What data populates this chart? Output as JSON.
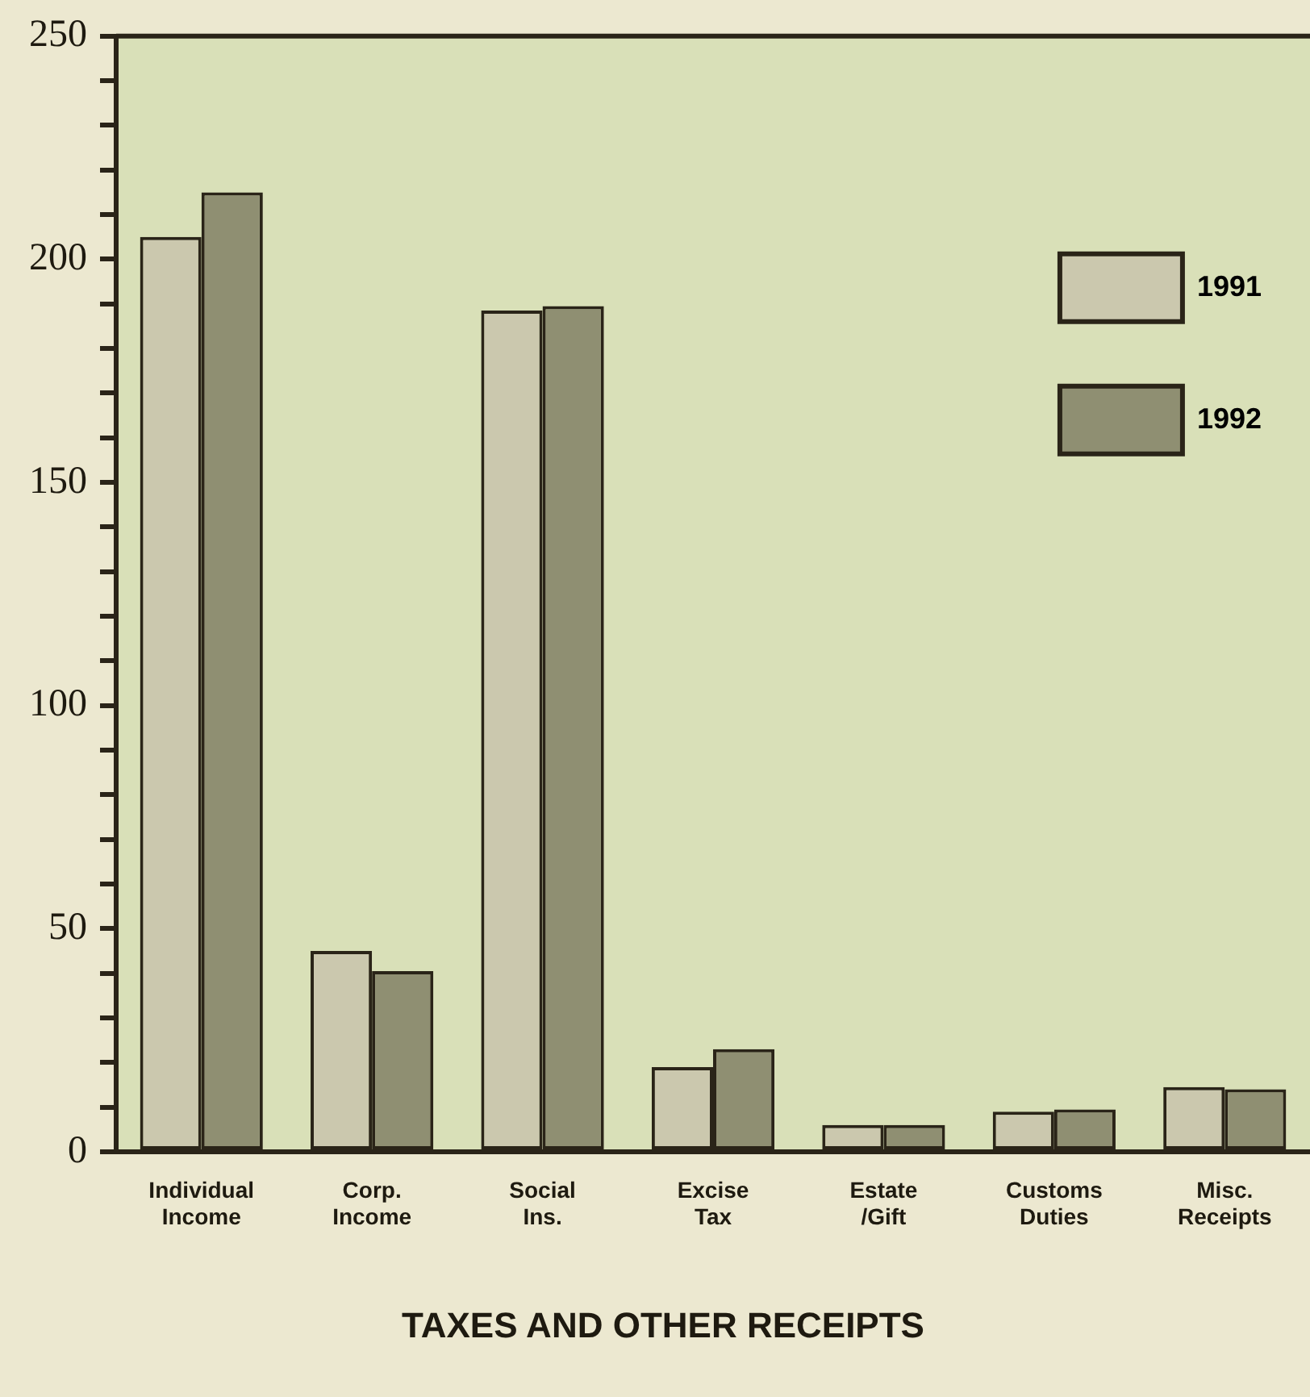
{
  "chart_data": {
    "type": "bar",
    "title": "TAXES AND OTHER RECEIPTS",
    "categories": [
      "Individual Income",
      "Corp. Income",
      "Social Ins.",
      "Excise Tax",
      "Estate /Gift",
      "Customs Duties",
      "Misc. Receipts"
    ],
    "series": [
      {
        "name": "1991",
        "color": "#cbc8ae",
        "values": [
          205,
          45,
          188.5,
          19,
          6,
          9,
          14.5
        ]
      },
      {
        "name": "1992",
        "color": "#8f8f72",
        "values": [
          215,
          40.5,
          189.5,
          23,
          6,
          9.5,
          14
        ]
      }
    ],
    "ylim": [
      0,
      250
    ],
    "yticks": [
      0,
      {
        "value": 10,
        "label": null
      },
      {
        "value": 20,
        "label": null
      },
      {
        "value": 30,
        "label": null
      },
      {
        "value": 40,
        "label": null
      },
      50,
      {
        "value": 60,
        "label": null
      },
      {
        "value": 70,
        "label": null
      },
      {
        "value": 80,
        "label": null
      },
      {
        "value": 90,
        "label": null
      },
      100,
      {
        "value": 110,
        "label": null
      },
      {
        "value": 120,
        "label": null
      },
      {
        "value": 130,
        "label": null
      },
      {
        "value": 140,
        "label": null
      },
      150,
      {
        "value": 160,
        "label": null
      },
      {
        "value": 170,
        "label": null
      },
      {
        "value": 180,
        "label": null
      },
      {
        "value": 190,
        "label": null
      },
      200,
      {
        "value": 210,
        "label": null
      },
      {
        "value": 220,
        "label": null
      },
      {
        "value": 230,
        "label": null
      },
      {
        "value": 240,
        "label": null
      },
      250
    ],
    "grid": false,
    "legend": "top right"
  }
}
